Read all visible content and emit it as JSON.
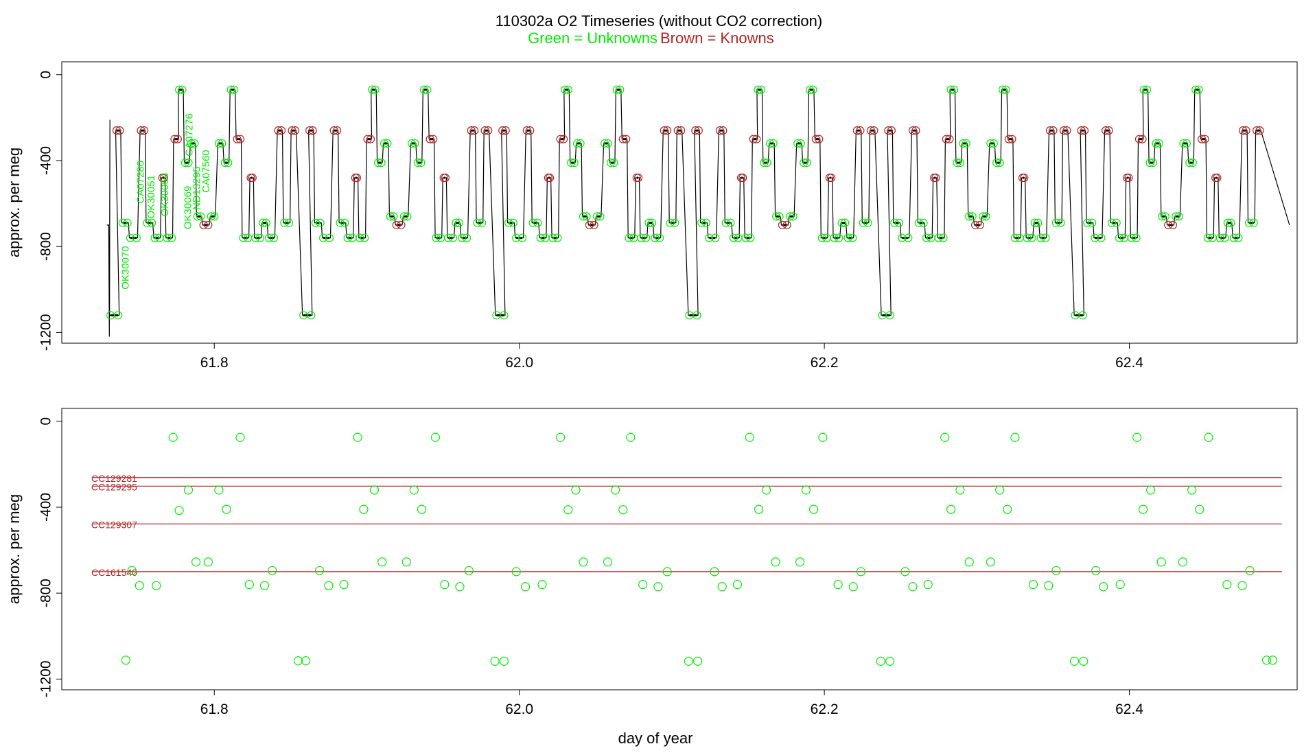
{
  "figure": {
    "title": "110302a   O2 Timeseries (without CO2 correction)",
    "legend_unknowns": "Green = Unknowns",
    "legend_knowns": "Brown = Knowns",
    "xlabel": "day of year",
    "colors": {
      "unknowns": "#00ee00",
      "knowns": "#b22222",
      "trace": "#000000"
    }
  },
  "chart_data": [
    {
      "type": "line",
      "ylabel": "approx. per meg",
      "xlim": [
        61.7,
        62.51
      ],
      "ylim": [
        -1250,
        60
      ],
      "xticks": [
        61.8,
        62.0,
        62.2,
        62.4
      ],
      "xticklabels": [
        "61.8",
        "62.0",
        "62.2",
        "62.4"
      ],
      "yticks": [
        0,
        -400,
        -800,
        -1200
      ],
      "yticklabels": [
        "0",
        "-400",
        "-800",
        "-1200"
      ],
      "sample_labels": [
        {
          "text": "OK30070",
          "x": 61.742,
          "y": -1000
        },
        {
          "text": "CA07280",
          "x": 61.752,
          "y": -600
        },
        {
          "text": "OK30051",
          "x": 61.759,
          "y": -670
        },
        {
          "text": "OK30054",
          "x": 61.768,
          "y": -660
        },
        {
          "text": "OK30069",
          "x": 61.783,
          "y": -720
        },
        {
          "text": "CA07276",
          "x": 61.784,
          "y": -380
        },
        {
          "text": "ND13295",
          "x": 61.789,
          "y": -630
        },
        {
          "text": "CA07560",
          "x": 61.795,
          "y": -550
        }
      ],
      "cycle_start": 61.732,
      "cycle_length": 0.1265,
      "cycle_count": 6,
      "trace_end": 62.505,
      "cycle_levels": [
        {
          "x": [
            0.0,
            0.005
          ],
          "y": -1120,
          "kind": "unknown"
        },
        {
          "x": [
            0.004,
            0.006
          ],
          "y": -260,
          "kind": "known"
        },
        {
          "x": [
            0.008,
            0.011
          ],
          "y": -690,
          "kind": "unknown"
        },
        {
          "x": [
            0.013,
            0.017
          ],
          "y": -760,
          "kind": "unknown"
        },
        {
          "x": [
            0.02,
            0.022
          ],
          "y": -260,
          "kind": "known"
        },
        {
          "x": [
            0.024,
            0.027
          ],
          "y": -690,
          "kind": "unknown"
        },
        {
          "x": [
            0.029,
            0.032
          ],
          "y": -760,
          "kind": "unknown"
        },
        {
          "x": [
            0.034,
            0.035
          ],
          "y": -480,
          "kind": "known"
        },
        {
          "x": [
            0.037,
            0.04
          ],
          "y": -760,
          "kind": "unknown"
        },
        {
          "x": [
            0.042,
            0.044
          ],
          "y": -300,
          "kind": "known"
        },
        {
          "x": [
            0.045,
            0.047
          ],
          "y": -70,
          "kind": "unknown"
        },
        {
          "x": [
            0.049,
            0.051
          ],
          "y": -410,
          "kind": "unknown"
        },
        {
          "x": [
            0.053,
            0.055
          ],
          "y": -320,
          "kind": "unknown"
        },
        {
          "x": [
            0.057,
            0.059
          ],
          "y": -660,
          "kind": "unknown"
        },
        {
          "x": [
            0.061,
            0.064
          ],
          "y": -700,
          "kind": "known"
        },
        {
          "x": [
            0.066,
            0.068
          ],
          "y": -660,
          "kind": "unknown"
        },
        {
          "x": [
            0.071,
            0.073
          ],
          "y": -320,
          "kind": "unknown"
        },
        {
          "x": [
            0.075,
            0.077
          ],
          "y": -410,
          "kind": "unknown"
        },
        {
          "x": [
            0.079,
            0.081
          ],
          "y": -70,
          "kind": "unknown"
        },
        {
          "x": [
            0.083,
            0.085
          ],
          "y": -300,
          "kind": "known"
        },
        {
          "x": [
            0.087,
            0.09
          ],
          "y": -760,
          "kind": "unknown"
        },
        {
          "x": [
            0.092,
            0.093
          ],
          "y": -480,
          "kind": "known"
        },
        {
          "x": [
            0.095,
            0.098
          ],
          "y": -760,
          "kind": "unknown"
        },
        {
          "x": [
            0.1,
            0.102
          ],
          "y": -690,
          "kind": "unknown"
        },
        {
          "x": [
            0.104,
            0.107
          ],
          "y": -760,
          "kind": "unknown"
        },
        {
          "x": [
            0.11,
            0.112
          ],
          "y": -260,
          "kind": "known"
        },
        {
          "x": [
            0.114,
            0.117
          ],
          "y": -690,
          "kind": "unknown"
        },
        {
          "x": [
            0.119,
            0.121
          ],
          "y": -260,
          "kind": "known"
        }
      ]
    },
    {
      "type": "scatter",
      "ylabel": "approx. per meg",
      "xlabel": "day of year",
      "xlim": [
        61.7,
        62.51
      ],
      "ylim": [
        -1250,
        60
      ],
      "xticks": [
        61.8,
        62.0,
        62.2,
        62.4
      ],
      "xticklabels": [
        "61.8",
        "62.0",
        "62.2",
        "62.4"
      ],
      "yticks": [
        0,
        -400,
        -800,
        -1200
      ],
      "yticklabels": [
        "0",
        "-400",
        "-800",
        "-1200"
      ],
      "reference_lines": [
        {
          "name": "CC129281",
          "y": -262,
          "x": [
            61.72,
            62.5
          ]
        },
        {
          "name": "CC129295",
          "y": -302,
          "x": [
            61.72,
            62.5
          ]
        },
        {
          "name": "CC129307",
          "y": -478,
          "x": [
            61.72,
            62.5
          ]
        },
        {
          "name": "CC161540",
          "y": -700,
          "x": [
            61.72,
            62.5
          ]
        }
      ],
      "unknowns": [
        [
          61.742,
          -1112
        ],
        [
          61.746,
          -695
        ],
        [
          61.751,
          -765
        ],
        [
          61.762,
          -765
        ],
        [
          61.773,
          -75
        ],
        [
          61.777,
          -415
        ],
        [
          61.783,
          -320
        ],
        [
          61.788,
          -655
        ],
        [
          61.796,
          -655
        ],
        [
          61.803,
          -320
        ],
        [
          61.808,
          -410
        ],
        [
          61.817,
          -75
        ],
        [
          61.823,
          -760
        ],
        [
          61.833,
          -765
        ],
        [
          61.838,
          -695
        ],
        [
          61.855,
          -1115
        ],
        [
          61.86,
          -1115
        ],
        [
          61.869,
          -695
        ],
        [
          61.875,
          -765
        ],
        [
          61.885,
          -760
        ],
        [
          61.894,
          -75
        ],
        [
          61.898,
          -410
        ],
        [
          61.905,
          -320
        ],
        [
          61.91,
          -655
        ],
        [
          61.926,
          -655
        ],
        [
          61.931,
          -320
        ],
        [
          61.936,
          -410
        ],
        [
          61.945,
          -75
        ],
        [
          61.951,
          -760
        ],
        [
          61.961,
          -770
        ],
        [
          61.967,
          -695
        ],
        [
          61.984,
          -1117
        ],
        [
          61.99,
          -1117
        ],
        [
          61.998,
          -700
        ],
        [
          62.004,
          -770
        ],
        [
          62.015,
          -760
        ],
        [
          62.027,
          -75
        ],
        [
          62.032,
          -412
        ],
        [
          62.037,
          -320
        ],
        [
          62.042,
          -655
        ],
        [
          62.058,
          -655
        ],
        [
          62.063,
          -320
        ],
        [
          62.068,
          -412
        ],
        [
          62.073,
          -75
        ],
        [
          62.081,
          -760
        ],
        [
          62.091,
          -770
        ],
        [
          62.097,
          -700
        ],
        [
          62.111,
          -1117
        ],
        [
          62.117,
          -1117
        ],
        [
          62.128,
          -700
        ],
        [
          62.133,
          -770
        ],
        [
          62.143,
          -760
        ],
        [
          62.151,
          -75
        ],
        [
          62.157,
          -410
        ],
        [
          62.162,
          -320
        ],
        [
          62.168,
          -655
        ],
        [
          62.184,
          -655
        ],
        [
          62.188,
          -320
        ],
        [
          62.193,
          -410
        ],
        [
          62.199,
          -75
        ],
        [
          62.209,
          -760
        ],
        [
          62.219,
          -770
        ],
        [
          62.224,
          -700
        ],
        [
          62.237,
          -1117
        ],
        [
          62.243,
          -1117
        ],
        [
          62.253,
          -700
        ],
        [
          62.258,
          -770
        ],
        [
          62.268,
          -760
        ],
        [
          62.279,
          -75
        ],
        [
          62.283,
          -410
        ],
        [
          62.289,
          -320
        ],
        [
          62.295,
          -655
        ],
        [
          62.309,
          -655
        ],
        [
          62.315,
          -320
        ],
        [
          62.32,
          -410
        ],
        [
          62.325,
          -75
        ],
        [
          62.337,
          -760
        ],
        [
          62.347,
          -765
        ],
        [
          62.352,
          -695
        ],
        [
          62.364,
          -1117
        ],
        [
          62.37,
          -1117
        ],
        [
          62.378,
          -695
        ],
        [
          62.383,
          -770
        ],
        [
          62.394,
          -760
        ],
        [
          62.405,
          -75
        ],
        [
          62.409,
          -410
        ],
        [
          62.414,
          -320
        ],
        [
          62.421,
          -655
        ],
        [
          62.435,
          -655
        ],
        [
          62.441,
          -320
        ],
        [
          62.446,
          -410
        ],
        [
          62.452,
          -75
        ],
        [
          62.464,
          -760
        ],
        [
          62.474,
          -765
        ],
        [
          62.479,
          -695
        ],
        [
          62.49,
          -1112
        ],
        [
          62.494,
          -1112
        ]
      ]
    }
  ]
}
